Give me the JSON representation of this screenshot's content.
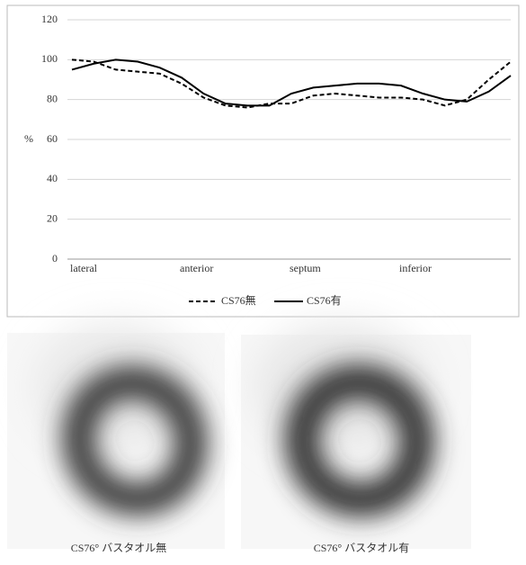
{
  "chart_data": {
    "type": "line",
    "y_label": "%",
    "x": [
      0,
      2,
      4,
      6,
      8,
      10,
      12,
      14,
      16,
      18,
      20,
      22,
      24,
      26,
      28,
      30,
      32,
      34,
      36,
      38,
      40
    ],
    "xlim": [
      0,
      40
    ],
    "xticks": [
      {
        "value": 0,
        "label": "lateral"
      },
      {
        "value": 10,
        "label": "anterior"
      },
      {
        "value": 20,
        "label": "septum"
      },
      {
        "value": 30,
        "label": "inferior"
      }
    ],
    "ylim": [
      0,
      120
    ],
    "yticks": [
      0,
      20,
      40,
      60,
      80,
      100,
      120
    ],
    "grid": true,
    "series": [
      {
        "name": "CS76無",
        "color": "#000000",
        "line_style": "dashed",
        "values": [
          100,
          99,
          95,
          94,
          93,
          88,
          81,
          77,
          76,
          78,
          78,
          82,
          83,
          82,
          81,
          81,
          80,
          77,
          80,
          90,
          99
        ]
      },
      {
        "name": "CS76有",
        "color": "#000000",
        "line_style": "solid",
        "values": [
          95,
          98,
          100,
          99,
          96,
          91,
          83,
          78,
          77,
          77,
          83,
          86,
          87,
          88,
          88,
          87,
          83,
          80,
          79,
          84,
          92
        ]
      }
    ]
  },
  "images": [
    {
      "caption": "CS76° バスタオル無"
    },
    {
      "caption": "CS76° バスタオル有"
    }
  ]
}
